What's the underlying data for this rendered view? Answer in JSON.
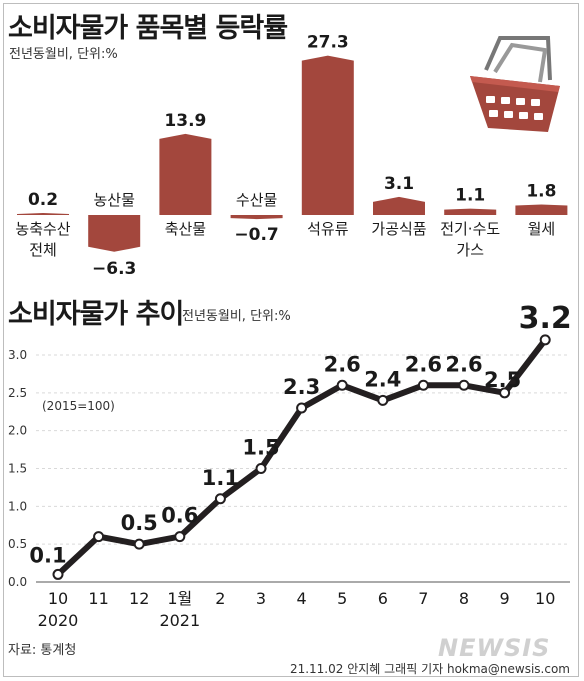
{
  "header": {
    "title_bar": "소비자물가 품목별 등락률",
    "bar_unit_note": "전년동월비, 단위:%",
    "title_line": "소비자물가 추이",
    "line_unit_note": "전년동월비, 단위:%",
    "base_note": "(2015=100)"
  },
  "footer": {
    "source": "자료: 통계청",
    "credit": "21.11.02 안지혜 그래픽 기자 hokma@newsis.com",
    "watermark": "NEWSIS"
  },
  "colors": {
    "bar": "#a3473d",
    "line": "#231f20",
    "grid": "#d9d9d9"
  },
  "icons": {
    "basket": "shopping-basket-icon"
  },
  "chart_data": [
    {
      "type": "bar",
      "title": "소비자물가 품목별 등락률",
      "categories": [
        [
          "농축수산",
          "전체"
        ],
        [
          "농산물"
        ],
        [
          "축산물"
        ],
        [
          "수산물"
        ],
        [
          "석유류"
        ],
        [
          "가공식품"
        ],
        [
          "전기·수도",
          "가스"
        ],
        [
          "월세"
        ]
      ],
      "values": [
        0.2,
        -6.3,
        13.9,
        -0.7,
        27.3,
        3.1,
        1.1,
        1.8
      ],
      "value_labels": [
        "0.2",
        "-6.3",
        "13.9",
        "-0.7",
        "27.3",
        "3.1",
        "1.1",
        "1.8"
      ]
    },
    {
      "type": "line",
      "title": "소비자물가 추이",
      "x": [
        "10",
        "11",
        "12",
        "1월",
        "2",
        "3",
        "4",
        "5",
        "6",
        "7",
        "8",
        "9",
        "10"
      ],
      "year_labels": [
        {
          "index": 0,
          "text": "2020"
        },
        {
          "index": 3,
          "text": "2021"
        }
      ],
      "values": [
        0.1,
        0.6,
        0.5,
        0.6,
        1.1,
        1.5,
        2.3,
        2.6,
        2.4,
        2.6,
        2.6,
        2.5,
        3.2
      ],
      "point_labels": [
        "0.1",
        "",
        "0.5",
        "0.6",
        "1.1",
        "1.5",
        "2.3",
        "2.6",
        "2.4",
        "2.6",
        "2.6",
        "2.5",
        "3.2"
      ],
      "yticks": [
        "0.0",
        "0.5",
        "1.0",
        "1.5",
        "2.0",
        "2.5",
        "3.0"
      ],
      "ylim": [
        0,
        3.0
      ],
      "grid": true
    }
  ]
}
